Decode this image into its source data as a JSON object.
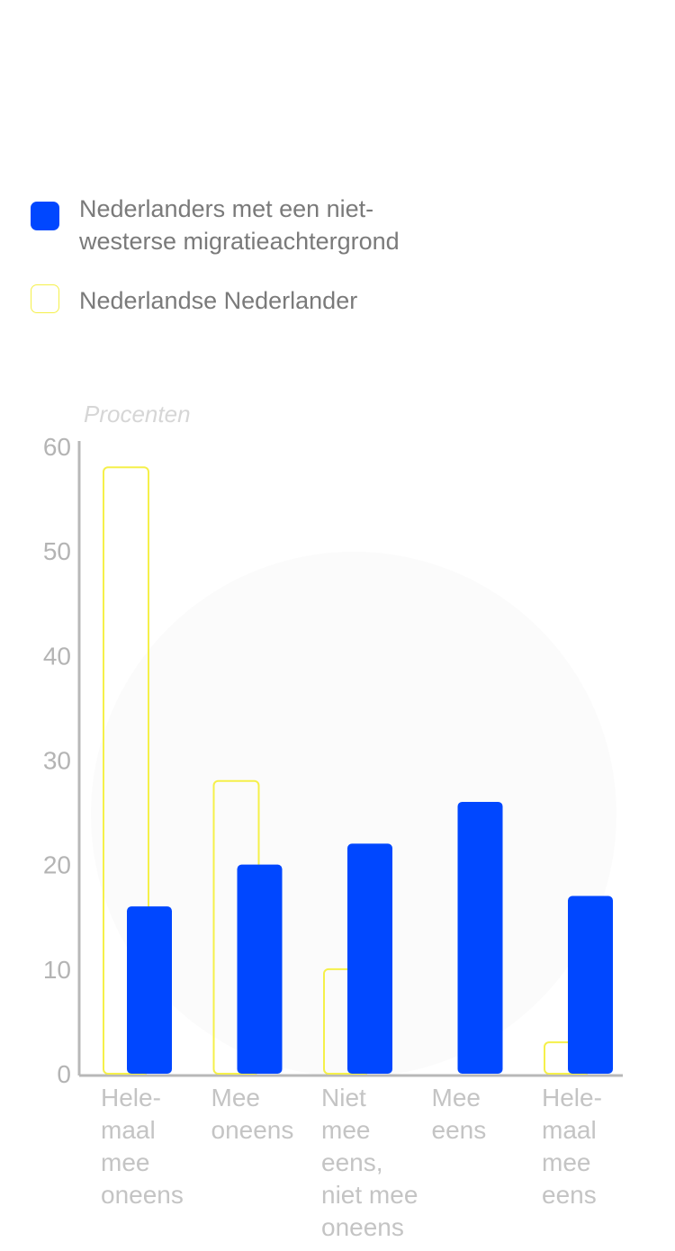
{
  "legend": {
    "items": [
      {
        "label": "Nederlanders met een niet-westerse migratieachtergrond",
        "color": "#0047ff",
        "style": "filled"
      },
      {
        "label": "Nederlandse Nederlander",
        "color": "#f5f04a",
        "style": "outline"
      }
    ]
  },
  "chart_data": {
    "type": "bar",
    "ylabel": "Procenten",
    "ylim": [
      0,
      60
    ],
    "yticks": [
      0,
      10,
      20,
      30,
      40,
      50,
      60
    ],
    "grid": false,
    "legend_position": "top",
    "categories": [
      [
        "Hele-",
        "maal",
        "mee",
        "oneens"
      ],
      [
        "Mee",
        "oneens"
      ],
      [
        "Niet",
        "mee",
        "eens,",
        "niet mee",
        "oneens"
      ],
      [
        "Mee",
        "eens"
      ],
      [
        "Hele-",
        "maal",
        "mee",
        "eens"
      ]
    ],
    "series": [
      {
        "name": "Nederlanders met een niet-westerse migratieachtergrond",
        "color": "#0047ff",
        "style": "filled",
        "values": [
          16,
          20,
          22,
          26,
          17
        ]
      },
      {
        "name": "Nederlandse Nederlander",
        "color": "#f5f04a",
        "style": "outline",
        "values": [
          58,
          28,
          10,
          0,
          3
        ]
      }
    ]
  }
}
